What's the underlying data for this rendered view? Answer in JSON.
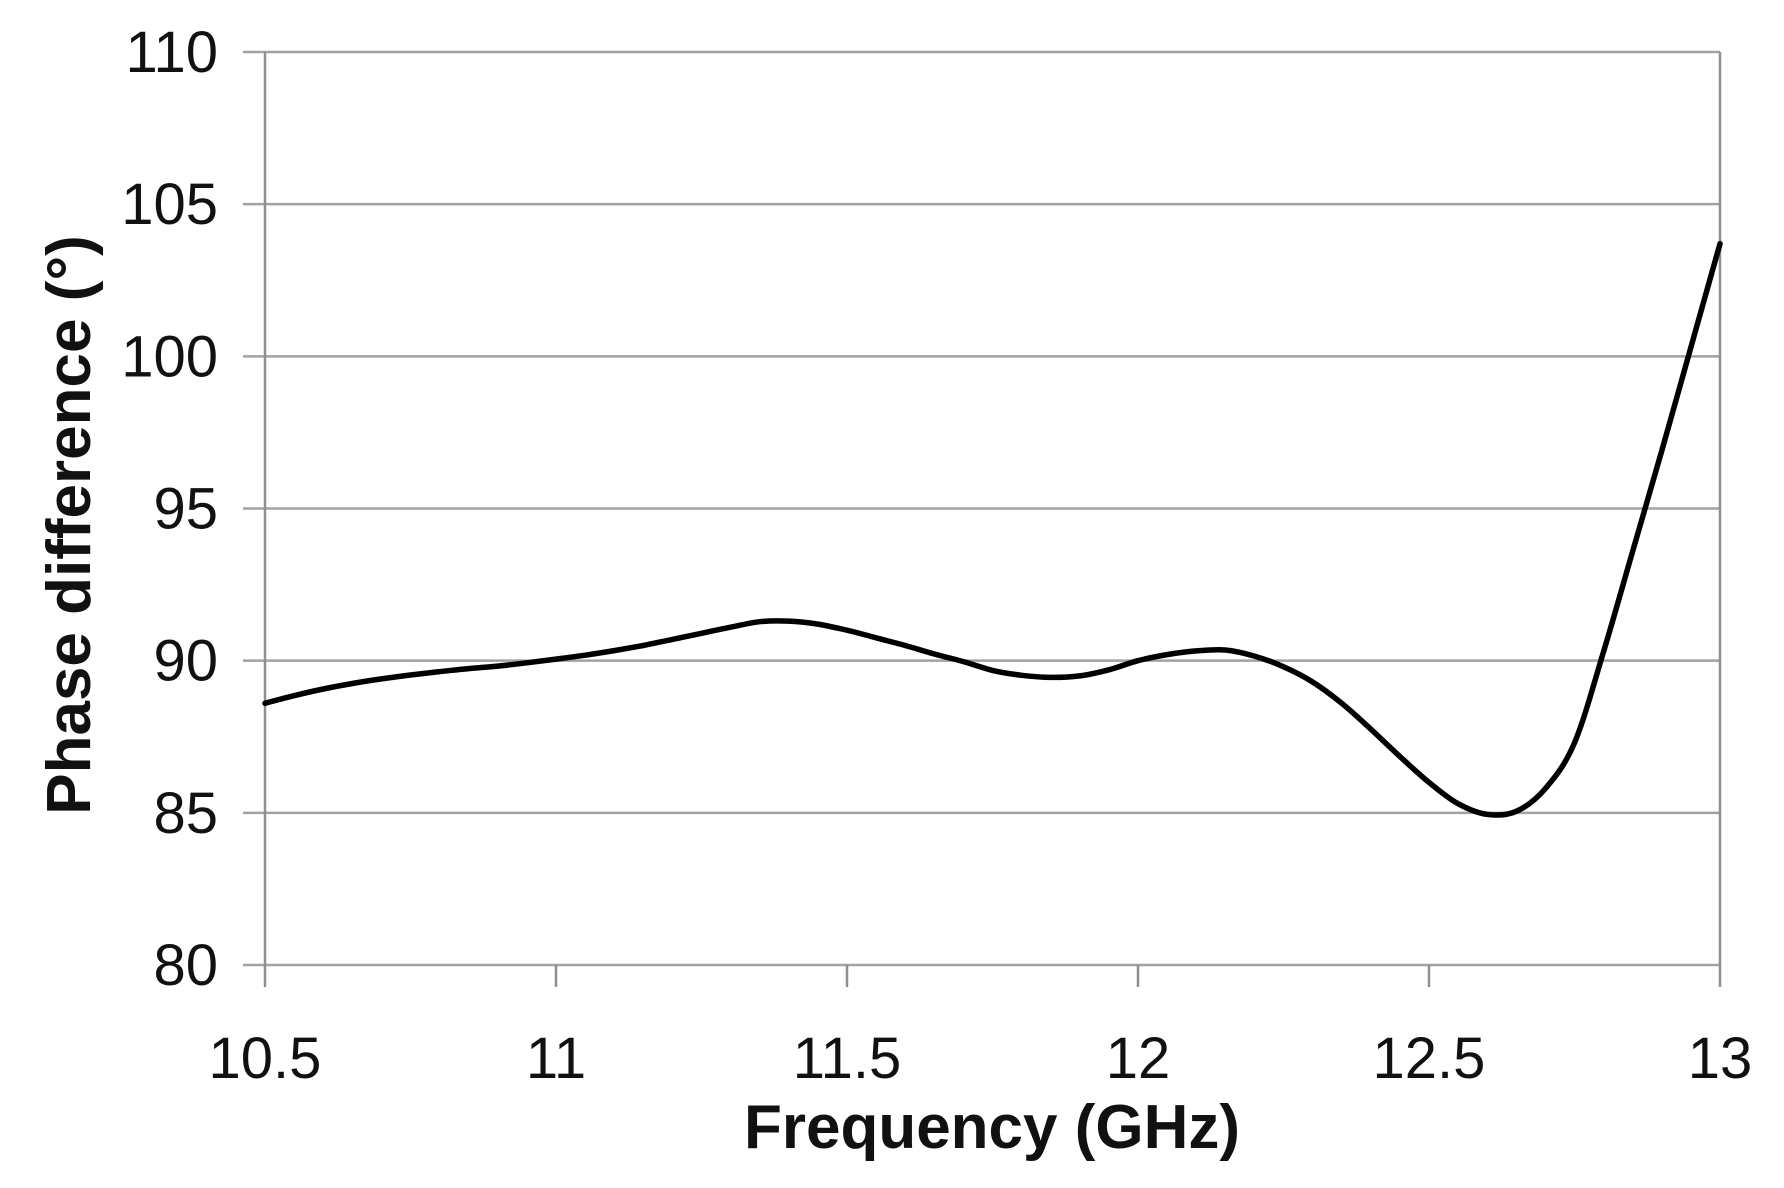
{
  "chart_data": {
    "type": "line",
    "title": "",
    "xlabel": "Frequency (GHz)",
    "ylabel": "Phase difference (°)",
    "xlim": [
      10.5,
      13
    ],
    "ylim": [
      80,
      110
    ],
    "x_ticks": [
      10.5,
      11,
      11.5,
      12,
      12.5,
      13
    ],
    "x_tick_labels": [
      "10.5",
      "11",
      "11.5",
      "12",
      "12.5",
      "13"
    ],
    "y_ticks": [
      80,
      85,
      90,
      95,
      100,
      105,
      110
    ],
    "y_tick_labels": [
      "80",
      "85",
      "90",
      "95",
      "100",
      "105",
      "110"
    ],
    "grid": "horizontal-only",
    "legend": "none",
    "colors": {
      "line": "#000000",
      "gridline": "#a2a2a2",
      "axis": "#8f8f8f",
      "text": "#111111",
      "background": "#ffffff"
    },
    "series": [
      {
        "name": "Phase difference",
        "points": [
          [
            10.5,
            88.6
          ],
          [
            10.55,
            88.85
          ],
          [
            10.6,
            89.07
          ],
          [
            10.65,
            89.25
          ],
          [
            10.7,
            89.4
          ],
          [
            10.75,
            89.53
          ],
          [
            10.8,
            89.64
          ],
          [
            10.85,
            89.74
          ],
          [
            10.9,
            89.82
          ],
          [
            10.95,
            89.93
          ],
          [
            11.0,
            90.05
          ],
          [
            11.05,
            90.18
          ],
          [
            11.1,
            90.33
          ],
          [
            11.15,
            90.5
          ],
          [
            11.2,
            90.7
          ],
          [
            11.25,
            90.9
          ],
          [
            11.3,
            91.1
          ],
          [
            11.35,
            91.28
          ],
          [
            11.4,
            91.3
          ],
          [
            11.45,
            91.2
          ],
          [
            11.5,
            91.0
          ],
          [
            11.55,
            90.75
          ],
          [
            11.6,
            90.5
          ],
          [
            11.65,
            90.22
          ],
          [
            11.7,
            89.97
          ],
          [
            11.75,
            89.68
          ],
          [
            11.8,
            89.52
          ],
          [
            11.85,
            89.45
          ],
          [
            11.9,
            89.5
          ],
          [
            11.95,
            89.7
          ],
          [
            12.0,
            90.0
          ],
          [
            12.05,
            90.2
          ],
          [
            12.1,
            90.32
          ],
          [
            12.15,
            90.35
          ],
          [
            12.2,
            90.15
          ],
          [
            12.25,
            89.8
          ],
          [
            12.3,
            89.3
          ],
          [
            12.35,
            88.6
          ],
          [
            12.4,
            87.75
          ],
          [
            12.45,
            86.85
          ],
          [
            12.5,
            86.0
          ],
          [
            12.55,
            85.3
          ],
          [
            12.6,
            84.95
          ],
          [
            12.65,
            85.05
          ],
          [
            12.7,
            85.8
          ],
          [
            12.75,
            87.3
          ],
          [
            12.8,
            90.3
          ],
          [
            12.85,
            93.6
          ],
          [
            12.9,
            96.9
          ],
          [
            12.95,
            100.3
          ],
          [
            13.0,
            103.7
          ]
        ]
      }
    ]
  }
}
